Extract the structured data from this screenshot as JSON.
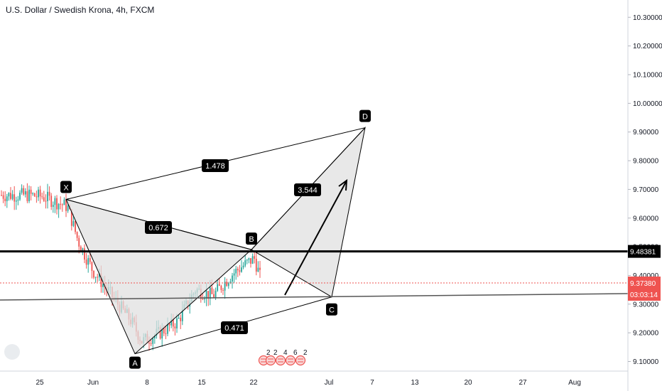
{
  "title": "U.S. Dollar / Swedish Krona, 4h, FXCM",
  "chart_data": {
    "type": "candlestick",
    "title": "U.S. Dollar / Swedish Krona, 4h, FXCM",
    "ylim": [
      9.07,
      10.35
    ],
    "y_ticks": [
      "9.10000",
      "9.20000",
      "9.30000",
      "9.40000",
      "9.50000",
      "9.60000",
      "9.70000",
      "9.80000",
      "9.90000",
      "10.00000",
      "10.10000",
      "10.20000",
      "10.30000"
    ],
    "x_ticks": [
      "25",
      "Jun",
      "8",
      "15",
      "22",
      "Jul",
      "7",
      "13",
      "20",
      "27",
      "Aug"
    ],
    "price_tags": {
      "level_line": "9.48381",
      "current_price": "9.37380",
      "countdown": "03:03:14"
    },
    "pattern_points": [
      {
        "label": "X",
        "value": 9.665
      },
      {
        "label": "A",
        "value": 9.127
      },
      {
        "label": "B",
        "value": 9.49
      },
      {
        "label": "C",
        "value": 9.325
      },
      {
        "label": "D",
        "value": 9.915
      }
    ],
    "ratios": [
      "1.478",
      "0.672",
      "3.544",
      "0.471"
    ],
    "event_markers": [
      "2",
      "2",
      "4",
      "6",
      "2"
    ],
    "colors": {
      "up": "#26a69a",
      "down": "#ef5350",
      "pattern_fill": "#e0e0e0",
      "level": "#000000",
      "price": "#ef5350"
    }
  }
}
